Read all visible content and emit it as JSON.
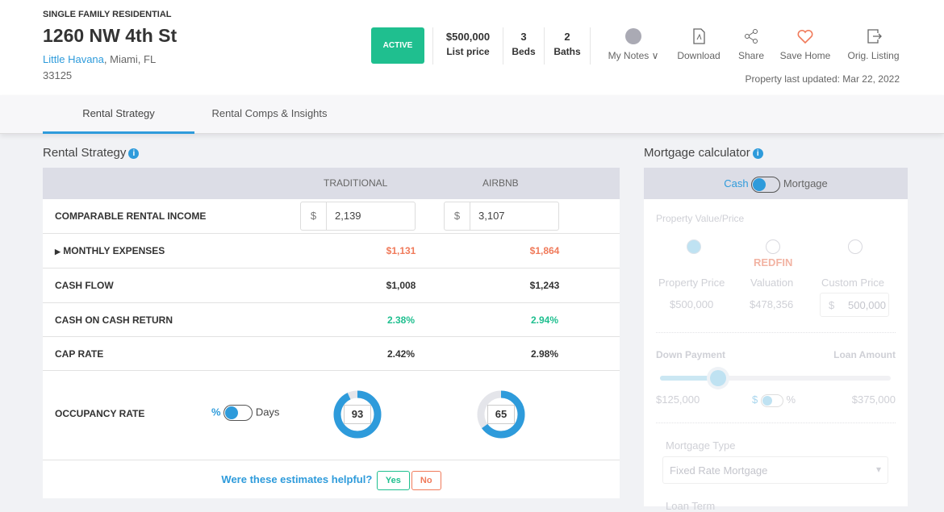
{
  "header": {
    "property_type": "SINGLE FAMILY RESIDENTIAL",
    "address": "1260 NW 4th St",
    "neighborhood": "Little Havana",
    "city_state": ", Miami, FL",
    "zip": "33125",
    "status": "ACTIVE",
    "stats": [
      {
        "value": "$500,000",
        "label": "List price"
      },
      {
        "value": "3",
        "label": "Beds"
      },
      {
        "value": "2",
        "label": "Baths"
      }
    ],
    "actions": [
      {
        "label": "My Notes ∨",
        "icon": "avatar-icon"
      },
      {
        "label": "Download",
        "icon": "pdf-icon"
      },
      {
        "label": "Share",
        "icon": "share-icon"
      },
      {
        "label": "Save Home",
        "icon": "heart-icon"
      },
      {
        "label": "Orig. Listing",
        "icon": "external-link-icon"
      }
    ],
    "last_updated": "Property last updated: Mar 22, 2022"
  },
  "tabs": [
    {
      "label": "Rental Strategy",
      "active": true
    },
    {
      "label": "Rental Comps & Insights",
      "active": false
    }
  ],
  "rental": {
    "title": "Rental Strategy",
    "col1": "TRADITIONAL",
    "col2": "AIRBNB",
    "income": {
      "label": "COMPARABLE RENTAL INCOME",
      "currency": "$",
      "traditional": "2,139",
      "airbnb": "3,107"
    },
    "expenses": {
      "label": "MONTHLY EXPENSES",
      "traditional": "$1,131",
      "airbnb": "$1,864"
    },
    "cash_flow": {
      "label": "CASH FLOW",
      "traditional": "$1,008",
      "airbnb": "$1,243"
    },
    "coc": {
      "label": "CASH ON CASH RETURN",
      "traditional": "2.38%",
      "airbnb": "2.94%"
    },
    "cap": {
      "label": "CAP RATE",
      "traditional": "2.42%",
      "airbnb": "2.98%"
    },
    "occupancy": {
      "label": "OCCUPANCY RATE",
      "unit_pct": "%",
      "unit_days": "Days",
      "traditional": "93",
      "airbnb": "65"
    },
    "feedback": {
      "question": "Were these estimates helpful?",
      "yes": "Yes",
      "no": "No"
    }
  },
  "mortgage": {
    "title": "Mortgage calculator",
    "cash": "Cash",
    "mortgage": "Mortgage",
    "pv_label": "Property Value/Price",
    "options": [
      {
        "label": "Property Price",
        "value": "$500,000"
      },
      {
        "brand": "REDFIN",
        "label": "Valuation",
        "value": "$478,356"
      },
      {
        "label": "Custom Price",
        "currency": "$",
        "value": "500,000"
      }
    ],
    "down_payment": "Down Payment",
    "loan_amount": "Loan Amount",
    "down_value": "$125,000",
    "loan_value": "$375,000",
    "down_fraction": 0.25,
    "unit_dollar": "$",
    "unit_pct": "%",
    "mortgage_type_label": "Mortgage Type",
    "mortgage_type": "Fixed Rate Mortgage",
    "loan_term_label": "Loan Term"
  },
  "colors": {
    "accent": "#2e9bdb",
    "active": "#1fbf8f",
    "expense": "#f07a5a"
  }
}
